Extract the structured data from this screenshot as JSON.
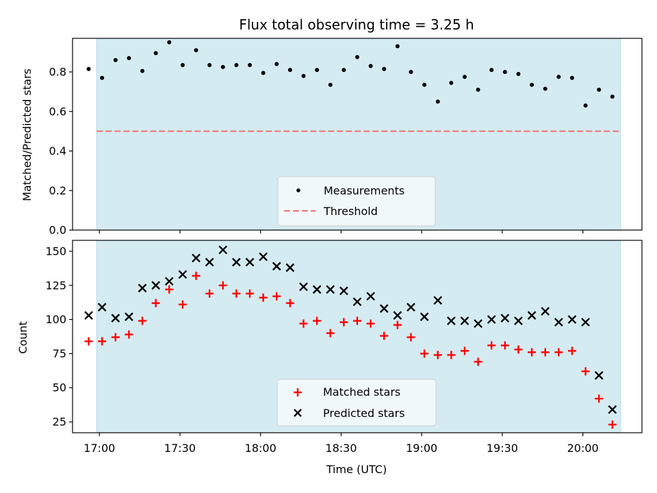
{
  "chart_data": [
    {
      "type": "scatter",
      "title": "Flux total observing time = 3.25 h",
      "ylabel": "Matched/Predicted stars",
      "ylim": [
        0,
        0.97
      ],
      "yticks": [
        "0.0",
        "0.2",
        "0.4",
        "0.6",
        "0.8"
      ],
      "ytick_values": [
        0,
        0.2,
        0.4,
        0.6,
        0.8
      ],
      "xlim_minutes": [
        1010,
        1222
      ],
      "shaded_span_minutes": [
        1019,
        1214
      ],
      "legend_position": "bottom-center",
      "threshold": {
        "name": "Threshold",
        "value": 0.5,
        "color": "#f07070",
        "style": "dashed"
      },
      "series": [
        {
          "name": "Measurements",
          "color": "#000000",
          "marker": "dot",
          "x": [
            "16:56",
            "17:01",
            "17:06",
            "17:11",
            "17:16",
            "17:21",
            "17:26",
            "17:31",
            "17:36",
            "17:41",
            "17:46",
            "17:51",
            "17:56",
            "18:01",
            "18:06",
            "18:11",
            "18:16",
            "18:21",
            "18:26",
            "18:31",
            "18:36",
            "18:41",
            "18:46",
            "18:51",
            "18:56",
            "19:01",
            "19:06",
            "19:11",
            "19:16",
            "19:21",
            "19:26",
            "19:31",
            "19:36",
            "19:41",
            "19:46",
            "19:51",
            "19:56",
            "20:01",
            "20:06",
            "20:11"
          ],
          "y": [
            0.815,
            0.77,
            0.86,
            0.87,
            0.805,
            0.895,
            0.95,
            0.835,
            0.91,
            0.835,
            0.825,
            0.835,
            0.835,
            0.795,
            0.84,
            0.81,
            0.78,
            0.81,
            0.735,
            0.81,
            0.875,
            0.83,
            0.815,
            0.93,
            0.8,
            0.735,
            0.65,
            0.745,
            0.775,
            0.71,
            0.81,
            0.8,
            0.79,
            0.735,
            0.715,
            0.775,
            0.77,
            0.63,
            0.71,
            0.675
          ]
        }
      ]
    },
    {
      "type": "scatter",
      "xlabel": "Time (UTC)",
      "ylabel": "Count",
      "ylim": [
        17,
        158
      ],
      "yticks": [
        "25",
        "50",
        "75",
        "100",
        "125",
        "150"
      ],
      "ytick_values": [
        25,
        50,
        75,
        100,
        125,
        150
      ],
      "xticks": [
        "17:00",
        "17:30",
        "18:00",
        "18:30",
        "19:00",
        "19:30",
        "20:00"
      ],
      "xtick_minutes": [
        1020,
        1050,
        1080,
        1110,
        1140,
        1170,
        1200
      ],
      "xlim_minutes": [
        1010,
        1222
      ],
      "shaded_span_minutes": [
        1019,
        1214
      ],
      "shade_color": "#d4ebf1",
      "legend_position": "bottom-center",
      "series": [
        {
          "name": "Matched stars",
          "color": "#ff0000",
          "marker": "plus",
          "x": [
            "16:56",
            "17:01",
            "17:06",
            "17:11",
            "17:16",
            "17:21",
            "17:26",
            "17:31",
            "17:36",
            "17:41",
            "17:46",
            "17:51",
            "17:56",
            "18:01",
            "18:06",
            "18:11",
            "18:16",
            "18:21",
            "18:26",
            "18:31",
            "18:36",
            "18:41",
            "18:46",
            "18:51",
            "18:56",
            "19:01",
            "19:06",
            "19:11",
            "19:16",
            "19:21",
            "19:26",
            "19:31",
            "19:36",
            "19:41",
            "19:46",
            "19:51",
            "19:56",
            "20:01",
            "20:06",
            "20:11"
          ],
          "y": [
            84,
            84,
            87,
            89,
            99,
            112,
            122,
            111,
            132,
            119,
            125,
            119,
            119,
            116,
            117,
            112,
            97,
            99,
            90,
            98,
            99,
            97,
            88,
            96,
            87,
            75,
            74,
            74,
            77,
            69,
            81,
            81,
            78,
            76,
            76,
            76,
            77,
            62,
            42,
            23
          ]
        },
        {
          "name": "Predicted stars",
          "color": "#000000",
          "marker": "x",
          "x": [
            "16:56",
            "17:01",
            "17:06",
            "17:11",
            "17:16",
            "17:21",
            "17:26",
            "17:31",
            "17:36",
            "17:41",
            "17:46",
            "17:51",
            "17:56",
            "18:01",
            "18:06",
            "18:11",
            "18:16",
            "18:21",
            "18:26",
            "18:31",
            "18:36",
            "18:41",
            "18:46",
            "18:51",
            "18:56",
            "19:01",
            "19:06",
            "19:11",
            "19:16",
            "19:21",
            "19:26",
            "19:31",
            "19:36",
            "19:41",
            "19:46",
            "19:51",
            "19:56",
            "20:01",
            "20:06",
            "20:11"
          ],
          "y": [
            103,
            109,
            101,
            102,
            123,
            125,
            128,
            133,
            145,
            142,
            151,
            142,
            142,
            146,
            139,
            138,
            124,
            122,
            122,
            121,
            113,
            117,
            108,
            103,
            109,
            102,
            114,
            99,
            99,
            97,
            100,
            101,
            99,
            103,
            106,
            98,
            100,
            98,
            59,
            34
          ]
        }
      ]
    }
  ]
}
